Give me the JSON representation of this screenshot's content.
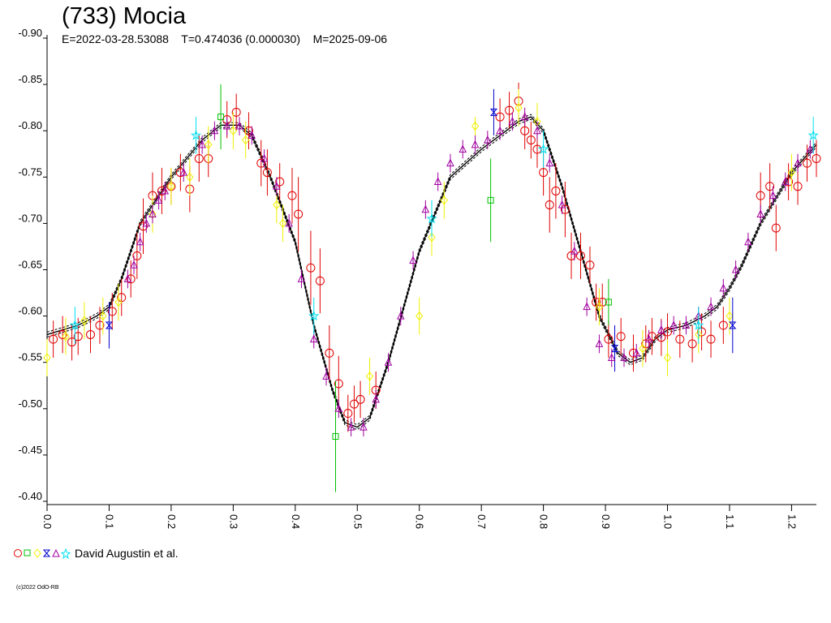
{
  "header": {
    "title": "(733) Mocia",
    "epoch": "E=2022-03-28.53088",
    "period": "T=0.474036 (0.000030)",
    "model": "M=2025-09-06"
  },
  "legend": {
    "label": "David Augustin et al."
  },
  "footer": {
    "copyright": "(c)2022 OdO-RB"
  },
  "colors": {
    "model_curve": "#000000",
    "circle": "#e00000",
    "square": "#00c000",
    "diamond": "#f0f000",
    "hourglass": "#0000d0",
    "triangle": "#a000a0",
    "star": "#00e0f0"
  },
  "chart_data": {
    "type": "scatter",
    "title": "(733) Mocia",
    "xlabel": "",
    "ylabel": "",
    "x_ticks": [
      "0.0",
      "0.1",
      "0.2",
      "0.3",
      "0.4",
      "0.5",
      "0.6",
      "0.7",
      "0.8",
      "0.9",
      "1.0",
      "1.1",
      "1.2"
    ],
    "y_ticks": [
      "-0.90",
      "-0.85",
      "-0.80",
      "-0.75",
      "-0.70",
      "-0.65",
      "-0.60",
      "-0.55",
      "-0.50",
      "-0.45",
      "-0.40"
    ],
    "xlim": [
      0.0,
      1.24
    ],
    "ylim": [
      -0.9,
      -0.4
    ],
    "y_inverted": true,
    "grid": false,
    "legend_position": "bottom-left",
    "model_curve": {
      "x": [
        0.0,
        0.05,
        0.08,
        0.1,
        0.12,
        0.15,
        0.2,
        0.25,
        0.28,
        0.31,
        0.33,
        0.36,
        0.4,
        0.43,
        0.46,
        0.48,
        0.5,
        0.52,
        0.55,
        0.6,
        0.65,
        0.7,
        0.73,
        0.76,
        0.78,
        0.8,
        0.83,
        0.86,
        0.89,
        0.92,
        0.94,
        0.96,
        0.98,
        1.0,
        1.03,
        1.06,
        1.08,
        1.1,
        1.12,
        1.15,
        1.2,
        1.24
      ],
      "y": [
        -0.58,
        -0.59,
        -0.6,
        -0.61,
        -0.64,
        -0.7,
        -0.75,
        -0.79,
        -0.806,
        -0.806,
        -0.795,
        -0.75,
        -0.68,
        -0.59,
        -0.52,
        -0.485,
        -0.48,
        -0.49,
        -0.55,
        -0.67,
        -0.75,
        -0.78,
        -0.795,
        -0.81,
        -0.815,
        -0.8,
        -0.74,
        -0.67,
        -0.6,
        -0.56,
        -0.55,
        -0.555,
        -0.575,
        -0.585,
        -0.59,
        -0.6,
        -0.61,
        -0.63,
        -0.655,
        -0.7,
        -0.755,
        -0.785
      ]
    },
    "series": [
      {
        "marker": "circle",
        "x": [
          0.01,
          0.025,
          0.04,
          0.05,
          0.07,
          0.085,
          0.105,
          0.12,
          0.135,
          0.145,
          0.155,
          0.17,
          0.185,
          0.2,
          0.215,
          0.23,
          0.245,
          0.26,
          0.29,
          0.305,
          0.325,
          0.345,
          0.355,
          0.375,
          0.395,
          0.405,
          0.425,
          0.44,
          0.455,
          0.47,
          0.485,
          0.495,
          0.505,
          0.53,
          0.73,
          0.745,
          0.76,
          0.77,
          0.78,
          0.79,
          0.8,
          0.81,
          0.82,
          0.835,
          0.845,
          0.86,
          0.875,
          0.885,
          0.895,
          0.905,
          0.925,
          0.945,
          0.965,
          0.975,
          0.99,
          1.0,
          1.02,
          1.04,
          1.055,
          1.07,
          1.09,
          1.15,
          1.165,
          1.175,
          1.195,
          1.21,
          1.225,
          1.24
        ],
        "y": [
          -0.575,
          -0.58,
          -0.572,
          -0.578,
          -0.58,
          -0.59,
          -0.605,
          -0.62,
          -0.64,
          -0.665,
          -0.697,
          -0.73,
          -0.735,
          -0.74,
          -0.755,
          -0.737,
          -0.77,
          -0.77,
          -0.812,
          -0.82,
          -0.8,
          -0.765,
          -0.755,
          -0.745,
          -0.73,
          -0.71,
          -0.652,
          -0.638,
          -0.56,
          -0.527,
          -0.495,
          -0.505,
          -0.51,
          -0.52,
          -0.815,
          -0.822,
          -0.832,
          -0.8,
          -0.79,
          -0.78,
          -0.755,
          -0.72,
          -0.735,
          -0.715,
          -0.665,
          -0.665,
          -0.655,
          -0.615,
          -0.615,
          -0.575,
          -0.578,
          -0.56,
          -0.57,
          -0.578,
          -0.577,
          -0.583,
          -0.575,
          -0.57,
          -0.583,
          -0.575,
          -0.59,
          -0.73,
          -0.74,
          -0.695,
          -0.745,
          -0.74,
          -0.765,
          -0.77
        ],
        "err": [
          0.02,
          0.02,
          0.02,
          0.02,
          0.02,
          0.02,
          0.02,
          0.02,
          0.02,
          0.025,
          0.03,
          0.025,
          0.025,
          0.02,
          0.02,
          0.025,
          0.025,
          0.02,
          0.02,
          0.02,
          0.02,
          0.025,
          0.025,
          0.02,
          0.03,
          0.04,
          0.04,
          0.035,
          0.03,
          0.03,
          0.02,
          0.02,
          0.02,
          0.02,
          0.02,
          0.02,
          0.02,
          0.02,
          0.02,
          0.02,
          0.025,
          0.03,
          0.03,
          0.03,
          0.025,
          0.025,
          0.02,
          0.02,
          0.02,
          0.02,
          0.02,
          0.02,
          0.02,
          0.02,
          0.02,
          0.02,
          0.02,
          0.02,
          0.02,
          0.02,
          0.02,
          0.025,
          0.025,
          0.025,
          0.02,
          0.02,
          0.02,
          0.02
        ]
      },
      {
        "marker": "square",
        "x": [
          0.28,
          0.465,
          0.715,
          0.905
        ],
        "y": [
          -0.815,
          -0.47,
          -0.725,
          -0.615
        ],
        "err": [
          0.035,
          0.06,
          0.045,
          0.025
        ]
      },
      {
        "marker": "diamond",
        "x": [
          0.0,
          0.03,
          0.06,
          0.09,
          0.115,
          0.17,
          0.2,
          0.23,
          0.26,
          0.3,
          0.32,
          0.37,
          0.38,
          0.52,
          0.6,
          0.62,
          0.64,
          0.69,
          0.76,
          0.79,
          0.89,
          0.96,
          1.0,
          1.05,
          1.1,
          1.2
        ],
        "y": [
          -0.555,
          -0.578,
          -0.595,
          -0.6,
          -0.615,
          -0.71,
          -0.74,
          -0.75,
          -0.785,
          -0.8,
          -0.79,
          -0.72,
          -0.7,
          -0.535,
          -0.6,
          -0.685,
          -0.725,
          -0.805,
          -0.825,
          -0.81,
          -0.61,
          -0.565,
          -0.555,
          -0.58,
          -0.6,
          -0.755
        ],
        "err": [
          0.02,
          0.02,
          0.02,
          0.02,
          0.02,
          0.02,
          0.02,
          0.02,
          0.02,
          0.02,
          0.02,
          0.02,
          0.02,
          0.02,
          0.02,
          0.02,
          0.02,
          0.01,
          0.02,
          0.02,
          0.02,
          0.02,
          0.02,
          0.02,
          0.02,
          0.02
        ]
      },
      {
        "marker": "hourglass",
        "x": [
          0.1,
          0.72,
          0.915,
          1.105
        ],
        "y": [
          -0.59,
          -0.82,
          -0.565,
          -0.59
        ],
        "err": [
          0.025,
          0.025,
          0.025,
          0.03
        ]
      },
      {
        "marker": "triangle",
        "x": [
          0.13,
          0.14,
          0.15,
          0.16,
          0.17,
          0.18,
          0.19,
          0.22,
          0.25,
          0.27,
          0.29,
          0.31,
          0.33,
          0.35,
          0.37,
          0.39,
          0.41,
          0.43,
          0.45,
          0.47,
          0.49,
          0.51,
          0.53,
          0.55,
          0.57,
          0.59,
          0.61,
          0.63,
          0.65,
          0.67,
          0.69,
          0.71,
          0.73,
          0.75,
          0.77,
          0.79,
          0.81,
          0.83,
          0.85,
          0.87,
          0.89,
          0.91,
          0.93,
          0.95,
          0.97,
          0.99,
          1.01,
          1.03,
          1.05,
          1.07,
          1.09,
          1.11,
          1.13,
          1.15,
          1.17,
          1.19,
          1.21,
          1.23
        ],
        "y": [
          -0.64,
          -0.655,
          -0.68,
          -0.7,
          -0.71,
          -0.725,
          -0.735,
          -0.755,
          -0.785,
          -0.8,
          -0.805,
          -0.805,
          -0.795,
          -0.77,
          -0.74,
          -0.7,
          -0.64,
          -0.575,
          -0.535,
          -0.5,
          -0.48,
          -0.48,
          -0.51,
          -0.55,
          -0.6,
          -0.66,
          -0.715,
          -0.745,
          -0.765,
          -0.78,
          -0.785,
          -0.79,
          -0.8,
          -0.81,
          -0.815,
          -0.8,
          -0.765,
          -0.72,
          -0.67,
          -0.61,
          -0.57,
          -0.555,
          -0.555,
          -0.56,
          -0.575,
          -0.585,
          -0.59,
          -0.59,
          -0.6,
          -0.61,
          -0.63,
          -0.65,
          -0.68,
          -0.71,
          -0.73,
          -0.745,
          -0.765,
          -0.78
        ],
        "err": [
          0.01,
          0.01,
          0.01,
          0.01,
          0.01,
          0.01,
          0.01,
          0.01,
          0.01,
          0.01,
          0.01,
          0.01,
          0.01,
          0.01,
          0.01,
          0.01,
          0.01,
          0.01,
          0.01,
          0.01,
          0.01,
          0.01,
          0.01,
          0.01,
          0.01,
          0.01,
          0.01,
          0.01,
          0.01,
          0.01,
          0.01,
          0.01,
          0.01,
          0.01,
          0.01,
          0.01,
          0.01,
          0.01,
          0.01,
          0.01,
          0.01,
          0.01,
          0.01,
          0.01,
          0.01,
          0.01,
          0.01,
          0.01,
          0.01,
          0.01,
          0.01,
          0.01,
          0.01,
          0.01,
          0.01,
          0.01,
          0.01,
          0.01
        ]
      },
      {
        "marker": "star",
        "x": [
          0.045,
          0.24,
          0.43,
          0.62,
          0.8,
          1.05,
          1.235
        ],
        "y": [
          -0.59,
          -0.795,
          -0.6,
          -0.705,
          -0.78,
          -0.59,
          -0.795
        ],
        "err": [
          0.02,
          0.02,
          0.02,
          0.02,
          0.02,
          0.02,
          0.02
        ]
      }
    ]
  }
}
